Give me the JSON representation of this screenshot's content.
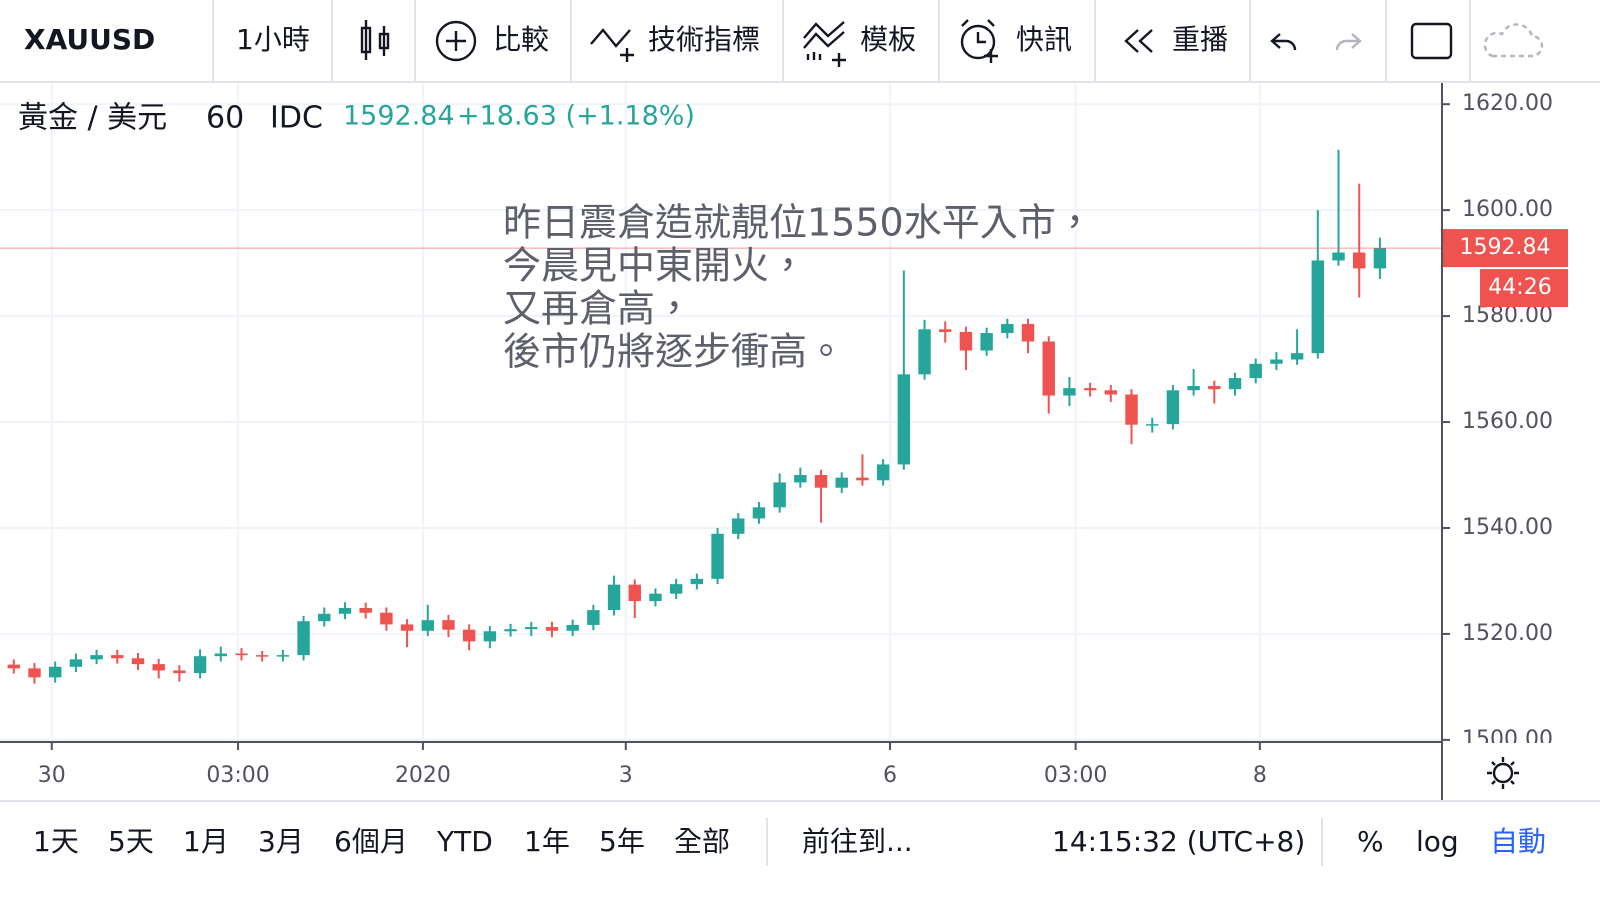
{
  "toolbar": {
    "symbol": "XAUUSD",
    "interval": "1小時",
    "buttons": [
      "比較",
      "技術指標",
      "模板",
      "快訊",
      "重播"
    ]
  },
  "chart_data": {
    "type": "candlestick",
    "title": "黃金 / 美元",
    "interval": "60",
    "source": "IDC",
    "last_price": 1592.84,
    "change": "+18.63 (+1.18%)",
    "countdown": "44:26",
    "annotation": [
      "昨日震倉造就靚位1550水平入市，",
      "今晨見中東開火，",
      "又再倉高，",
      "後市仍將逐步衝高。"
    ],
    "x": [
      2,
      5,
      8,
      11,
      14,
      17,
      20,
      23,
      26,
      29,
      32,
      35,
      38,
      41,
      44,
      47,
      50,
      53,
      56,
      59,
      62,
      65,
      68,
      71,
      74,
      77,
      80,
      83,
      86,
      89,
      92,
      95,
      98,
      101,
      104,
      107,
      110,
      113,
      116,
      119,
      122,
      125,
      128,
      131,
      134,
      137,
      140,
      143,
      146,
      149,
      152,
      155,
      158,
      161,
      164,
      167,
      170,
      173,
      176,
      179,
      182,
      185,
      188,
      191,
      194,
      197,
      200
    ],
    "open": [
      1514.2,
      1513.5,
      1511.8,
      1513.8,
      1515.2,
      1516.0,
      1515.4,
      1514.3,
      1513.1,
      1512.6,
      1515.8,
      1516.3,
      1516.0,
      1515.8,
      1516.0,
      1522.4,
      1523.8,
      1524.9,
      1524.0,
      1521.8,
      1520.6,
      1522.6,
      1520.8,
      1518.6,
      1520.5,
      1520.9,
      1521.3,
      1520.6,
      1521.7,
      1524.5,
      1529.3,
      1526.2,
      1527.6,
      1529.4,
      1530.4,
      1538.9,
      1541.8,
      1543.9,
      1548.6,
      1550.0,
      1547.6,
      1549.5,
      1549.0,
      1552.0,
      1569.0,
      1577.5,
      1577.0,
      1573.5,
      1576.8,
      1578.5,
      1575.2,
      1565.0,
      1566.4,
      1566.0,
      1565.2,
      1559.5,
      1559.6,
      1566.0,
      1566.8,
      1566.2,
      1568.3,
      1571.0,
      1571.8,
      1573.0,
      1590.5,
      1592.0,
      1589.0
    ],
    "high": [
      1515.2,
      1514.5,
      1514.8,
      1516.3,
      1517.0,
      1517.0,
      1516.4,
      1515.3,
      1514.1,
      1517.1,
      1517.6,
      1517.3,
      1516.8,
      1517.0,
      1523.4,
      1525.0,
      1526.0,
      1525.9,
      1525.0,
      1522.8,
      1525.5,
      1523.6,
      1521.8,
      1521.5,
      1521.9,
      1522.3,
      1522.3,
      1522.7,
      1525.5,
      1531.0,
      1530.3,
      1528.6,
      1530.4,
      1531.4,
      1540.0,
      1542.8,
      1544.9,
      1550.3,
      1551.4,
      1551.0,
      1550.5,
      1553.9,
      1553.0,
      1588.6,
      1579.3,
      1579.0,
      1578.0,
      1577.8,
      1579.5,
      1579.5,
      1576.2,
      1568.5,
      1567.4,
      1567.0,
      1566.2,
      1560.8,
      1567.0,
      1570.0,
      1567.8,
      1569.3,
      1572.0,
      1573.2,
      1577.5,
      1600.0,
      1611.4,
      1605.0,
      1594.8
    ],
    "low": [
      1512.5,
      1510.6,
      1510.8,
      1512.8,
      1514.3,
      1514.4,
      1513.2,
      1511.6,
      1511.0,
      1511.6,
      1514.8,
      1515.0,
      1514.8,
      1514.8,
      1515.0,
      1521.4,
      1522.8,
      1522.9,
      1520.6,
      1517.5,
      1519.6,
      1519.4,
      1516.9,
      1517.3,
      1519.5,
      1519.6,
      1519.4,
      1519.6,
      1520.7,
      1523.5,
      1523.0,
      1525.2,
      1526.6,
      1528.4,
      1529.4,
      1537.9,
      1540.8,
      1542.9,
      1547.6,
      1541.0,
      1546.6,
      1548.0,
      1548.0,
      1551.0,
      1568.0,
      1575.0,
      1569.8,
      1572.5,
      1575.8,
      1573.0,
      1561.6,
      1563.0,
      1564.8,
      1563.8,
      1555.8,
      1558.0,
      1558.6,
      1565.0,
      1563.5,
      1565.0,
      1567.3,
      1569.8,
      1570.8,
      1572.0,
      1589.5,
      1583.5,
      1587.0
    ],
    "close": [
      1513.5,
      1511.8,
      1513.8,
      1515.2,
      1516.0,
      1515.4,
      1514.3,
      1513.1,
      1512.6,
      1515.8,
      1516.3,
      1516.0,
      1515.8,
      1516.0,
      1522.4,
      1523.8,
      1524.9,
      1524.0,
      1521.8,
      1520.6,
      1522.6,
      1520.8,
      1518.6,
      1520.5,
      1520.9,
      1521.3,
      1520.6,
      1521.7,
      1524.5,
      1529.3,
      1526.2,
      1527.6,
      1529.4,
      1530.4,
      1538.9,
      1541.8,
      1543.9,
      1548.6,
      1550.0,
      1547.6,
      1549.5,
      1549.0,
      1552.0,
      1569.0,
      1577.5,
      1577.0,
      1573.5,
      1576.8,
      1578.5,
      1575.2,
      1565.0,
      1566.4,
      1566.0,
      1565.2,
      1559.5,
      1559.6,
      1566.0,
      1566.8,
      1566.2,
      1568.3,
      1571.0,
      1571.8,
      1573.0,
      1590.5,
      1592.0,
      1589.0,
      1592.84
    ],
    "up_color": "#26a69a",
    "down_color": "#ef5350",
    "xlim": [
      0,
      209
    ],
    "xticks": [
      {
        "value": 7.5,
        "label": "30"
      },
      {
        "value": 34.5,
        "label": "03:00"
      },
      {
        "value": 61.3,
        "label": "2020"
      },
      {
        "value": 90.7,
        "label": "3"
      },
      {
        "value": 129,
        "label": "6"
      },
      {
        "value": 155.9,
        "label": "03:00"
      },
      {
        "value": 182.6,
        "label": "8"
      }
    ],
    "ylim": [
      1499.6,
      1624
    ],
    "yticks": [
      {
        "value": 1500,
        "label": "1500.00"
      },
      {
        "value": 1520,
        "label": "1520.00"
      },
      {
        "value": 1540,
        "label": "1540.00"
      },
      {
        "value": 1560,
        "label": "1560.00"
      },
      {
        "value": 1580,
        "label": "1580.00"
      },
      {
        "value": 1600,
        "label": "1600.00"
      },
      {
        "value": 1620,
        "label": "1620.00"
      }
    ],
    "grid": true
  },
  "bottom_bar": {
    "ranges": [
      "1天",
      "5天",
      "1月",
      "3月",
      "6個月",
      "YTD",
      "1年",
      "5年",
      "全部"
    ],
    "goto": "前往到...",
    "time": "14:15:32 (UTC+8)",
    "options": [
      "%",
      "log",
      "自動"
    ]
  }
}
